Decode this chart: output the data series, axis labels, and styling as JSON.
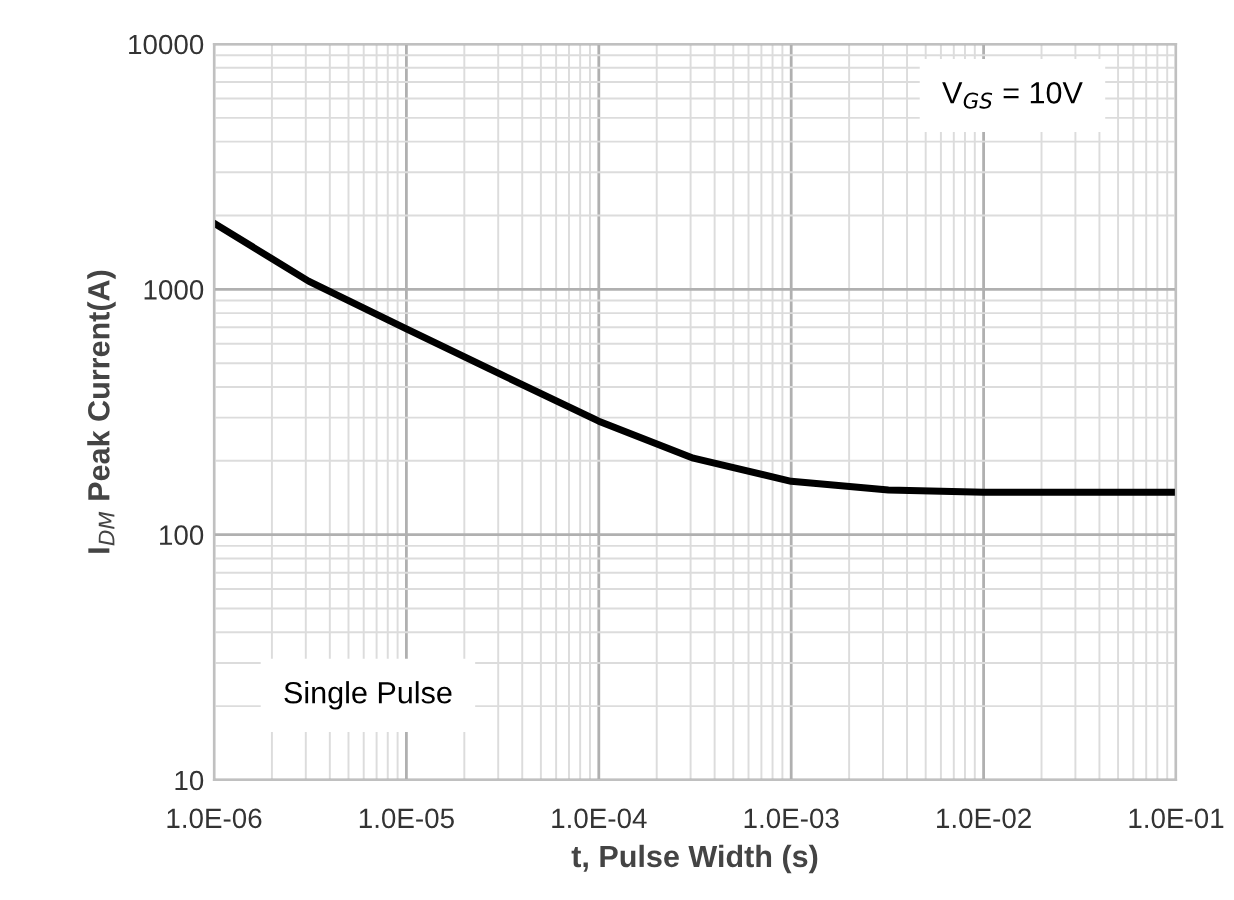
{
  "chart_data": {
    "type": "line",
    "xlabel": "t, Pulse Width (s)",
    "ylabel": "I$_{DM}$ Peak Current(A)",
    "log": "xy",
    "grid": true,
    "marker": "none",
    "line_style": "solid",
    "xlim": [
      1e-06,
      0.1
    ],
    "ylim": [
      10,
      10000
    ],
    "xticks": [
      {
        "value": 1e-06,
        "label": "1.0E-06"
      },
      {
        "value": 1e-05,
        "label": "1.0E-05"
      },
      {
        "value": 0.0001,
        "label": "1.0E-04"
      },
      {
        "value": 0.001,
        "label": "1.0E-03"
      },
      {
        "value": 0.01,
        "label": "1.0E-02"
      },
      {
        "value": 0.1,
        "label": "1.0E-01"
      }
    ],
    "yticks": [
      10,
      100,
      1000,
      10000
    ],
    "x": [
      1e-06,
      3.1e-06,
      1e-05,
      3.1e-05,
      0.0001,
      0.00031,
      0.001,
      0.0032,
      0.01,
      0.032,
      0.1
    ],
    "series": [
      {
        "color": "#000000",
        "values": [
          1860,
          1080,
          690,
          450,
          290,
          205,
          165,
          152,
          149,
          149,
          149
        ]
      }
    ],
    "annotations": [
      "V$_{GS}$ = 10V",
      "Single Pulse"
    ]
  }
}
